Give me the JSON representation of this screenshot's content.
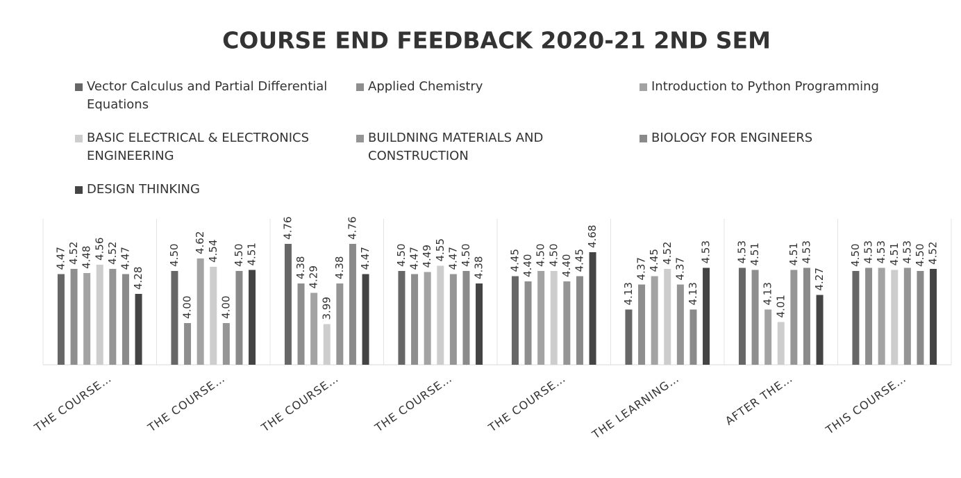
{
  "chart_data": {
    "type": "bar",
    "title": "COURSE END FEEDBACK 2020-21 2ND  SEM",
    "categories": [
      "THE COURSE…",
      "THE COURSE…",
      "THE COURSE…",
      "THE COURSE…",
      "THE COURSE…",
      "THE LEARNING…",
      "AFTER THE…",
      "THIS COURSE…"
    ],
    "ylim": [
      3.6,
      5.0
    ],
    "series": [
      {
        "name": "Vector Calculus and Partial Differential Equations",
        "color": "#676767",
        "values": [
          4.47,
          4.5,
          4.76,
          4.5,
          4.45,
          4.13,
          4.53,
          4.5
        ],
        "value_labels": [
          "4.47",
          "4.50",
          "4.76",
          "4.50",
          "4.45",
          "4.13",
          "4.53",
          "4.50"
        ]
      },
      {
        "name": "Applied Chemistry",
        "color": "#8e8e8e",
        "values": [
          4.52,
          4.0,
          4.38,
          4.47,
          4.4,
          4.37,
          4.51,
          4.53
        ],
        "value_labels": [
          "4.52",
          "4.00",
          "4.38",
          "4.47",
          "4.40",
          "4.37",
          "4.51",
          "4.53"
        ]
      },
      {
        "name": "Introduction to Python Programming",
        "color": "#a3a3a3",
        "values": [
          4.48,
          4.62,
          4.29,
          4.49,
          4.5,
          4.45,
          4.13,
          4.53
        ],
        "value_labels": [
          "4.48",
          "4.62",
          "4.29",
          "4.49",
          "4.50",
          "4.45",
          "4.13",
          "4.53"
        ]
      },
      {
        "name": "BASIC ELECTRICAL & ELECTRONICS ENGINEERING",
        "color": "#cdcdcd",
        "values": [
          4.56,
          4.54,
          3.99,
          4.55,
          4.5,
          4.52,
          4.01,
          4.51
        ],
        "value_labels": [
          "4.56",
          "4.54",
          "3.99",
          "4.55",
          "4.50",
          "4.52",
          "4.01",
          "4.51"
        ]
      },
      {
        "name": "BUILDNING MATERIALS AND CONSTRUCTION",
        "color": "#959595",
        "values": [
          4.52,
          4.0,
          4.38,
          4.47,
          4.4,
          4.37,
          4.51,
          4.53
        ],
        "value_labels": [
          "4.52",
          "4.00",
          "4.38",
          "4.47",
          "4.40",
          "4.37",
          "4.51",
          "4.53"
        ]
      },
      {
        "name": "BIOLOGY FOR ENGINEERS",
        "color": "#8a8a8a",
        "values": [
          4.47,
          4.5,
          4.76,
          4.5,
          4.45,
          4.13,
          4.53,
          4.5
        ],
        "value_labels": [
          "4.47",
          "4.50",
          "4.76",
          "4.50",
          "4.45",
          "4.13",
          "4.53",
          "4.50"
        ]
      },
      {
        "name": "DESIGN THINKING",
        "color": "#444444",
        "values": [
          4.28,
          4.51,
          4.47,
          4.38,
          4.68,
          4.53,
          4.27,
          4.52
        ],
        "value_labels": [
          "4.28",
          "4.51",
          "4.47",
          "4.38",
          "4.68",
          "4.53",
          "4.27",
          "4.52"
        ]
      }
    ]
  }
}
